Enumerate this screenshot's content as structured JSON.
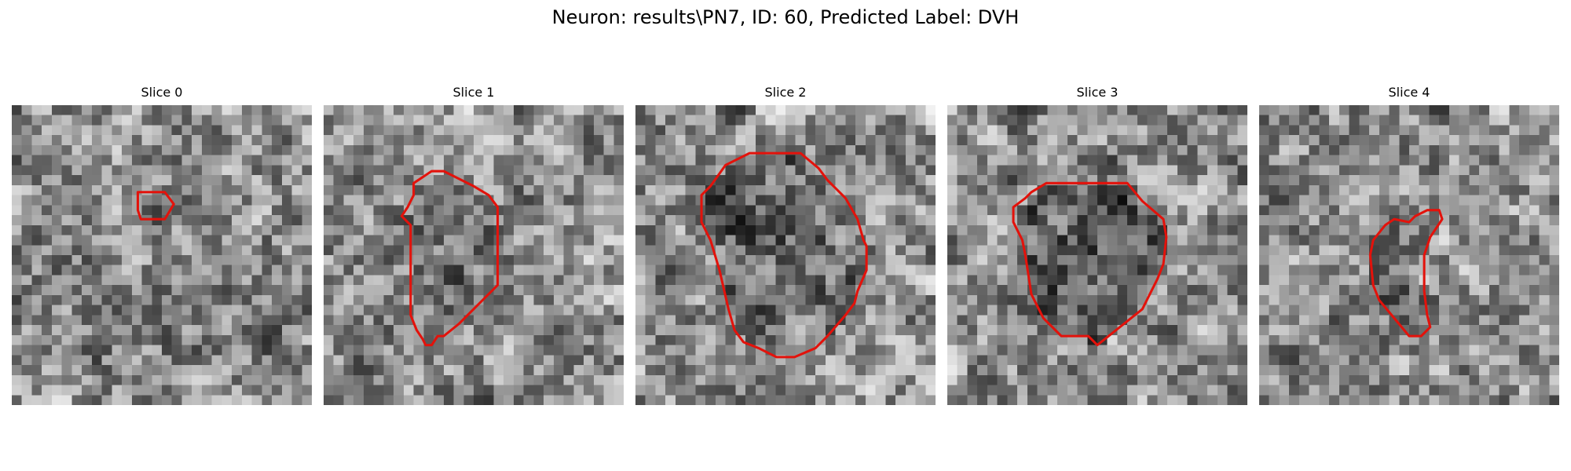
{
  "figure": {
    "title": "Neuron: results\\PN7, ID: 60, Predicted Label: DVH"
  },
  "slices": [
    {
      "label": "Slice 0",
      "contour_color": "#e3120b",
      "contour": [
        [
          0.42,
          0.29
        ],
        [
          0.51,
          0.29
        ],
        [
          0.54,
          0.33
        ],
        [
          0.51,
          0.38
        ],
        [
          0.43,
          0.38
        ],
        [
          0.42,
          0.35
        ]
      ]
    },
    {
      "label": "Slice 1",
      "contour_color": "#e3120b",
      "contour": [
        [
          0.3,
          0.26
        ],
        [
          0.36,
          0.22
        ],
        [
          0.4,
          0.22
        ],
        [
          0.46,
          0.25
        ],
        [
          0.5,
          0.27
        ],
        [
          0.55,
          0.3
        ],
        [
          0.58,
          0.34
        ],
        [
          0.58,
          0.6
        ],
        [
          0.54,
          0.64
        ],
        [
          0.5,
          0.68
        ],
        [
          0.45,
          0.73
        ],
        [
          0.4,
          0.77
        ],
        [
          0.38,
          0.77
        ],
        [
          0.36,
          0.8
        ],
        [
          0.34,
          0.8
        ],
        [
          0.33,
          0.78
        ],
        [
          0.31,
          0.75
        ],
        [
          0.29,
          0.7
        ],
        [
          0.29,
          0.6
        ],
        [
          0.29,
          0.4
        ],
        [
          0.26,
          0.37
        ],
        [
          0.28,
          0.34
        ],
        [
          0.3,
          0.3
        ]
      ]
    },
    {
      "label": "Slice 2",
      "contour_color": "#e3120b",
      "contour": [
        [
          0.3,
          0.2
        ],
        [
          0.38,
          0.16
        ],
        [
          0.55,
          0.16
        ],
        [
          0.61,
          0.21
        ],
        [
          0.64,
          0.25
        ],
        [
          0.7,
          0.31
        ],
        [
          0.74,
          0.38
        ],
        [
          0.76,
          0.45
        ],
        [
          0.77,
          0.47
        ],
        [
          0.77,
          0.55
        ],
        [
          0.74,
          0.62
        ],
        [
          0.73,
          0.66
        ],
        [
          0.7,
          0.7
        ],
        [
          0.64,
          0.77
        ],
        [
          0.6,
          0.81
        ],
        [
          0.53,
          0.84
        ],
        [
          0.47,
          0.84
        ],
        [
          0.41,
          0.81
        ],
        [
          0.36,
          0.79
        ],
        [
          0.33,
          0.75
        ],
        [
          0.31,
          0.68
        ],
        [
          0.28,
          0.55
        ],
        [
          0.25,
          0.45
        ],
        [
          0.22,
          0.39
        ],
        [
          0.22,
          0.3
        ],
        [
          0.25,
          0.27
        ]
      ]
    },
    {
      "label": "Slice 3",
      "contour_color": "#e3120b",
      "contour": [
        [
          0.28,
          0.29
        ],
        [
          0.33,
          0.26
        ],
        [
          0.6,
          0.26
        ],
        [
          0.65,
          0.32
        ],
        [
          0.72,
          0.38
        ],
        [
          0.73,
          0.44
        ],
        [
          0.72,
          0.53
        ],
        [
          0.7,
          0.58
        ],
        [
          0.68,
          0.62
        ],
        [
          0.65,
          0.68
        ],
        [
          0.6,
          0.72
        ],
        [
          0.55,
          0.76
        ],
        [
          0.5,
          0.8
        ],
        [
          0.47,
          0.77
        ],
        [
          0.38,
          0.77
        ],
        [
          0.32,
          0.71
        ],
        [
          0.28,
          0.63
        ],
        [
          0.26,
          0.5
        ],
        [
          0.25,
          0.45
        ],
        [
          0.22,
          0.39
        ],
        [
          0.22,
          0.34
        ],
        [
          0.26,
          0.31
        ]
      ]
    },
    {
      "label": "Slice 4",
      "contour_color": "#e3120b",
      "contour": [
        [
          0.52,
          0.37
        ],
        [
          0.56,
          0.35
        ],
        [
          0.6,
          0.35
        ],
        [
          0.61,
          0.38
        ],
        [
          0.59,
          0.41
        ],
        [
          0.57,
          0.44
        ],
        [
          0.55,
          0.5
        ],
        [
          0.55,
          0.62
        ],
        [
          0.56,
          0.7
        ],
        [
          0.57,
          0.74
        ],
        [
          0.54,
          0.77
        ],
        [
          0.5,
          0.77
        ],
        [
          0.45,
          0.71
        ],
        [
          0.4,
          0.65
        ],
        [
          0.38,
          0.6
        ],
        [
          0.37,
          0.5
        ],
        [
          0.38,
          0.45
        ],
        [
          0.42,
          0.4
        ],
        [
          0.45,
          0.38
        ],
        [
          0.5,
          0.39
        ]
      ]
    }
  ]
}
